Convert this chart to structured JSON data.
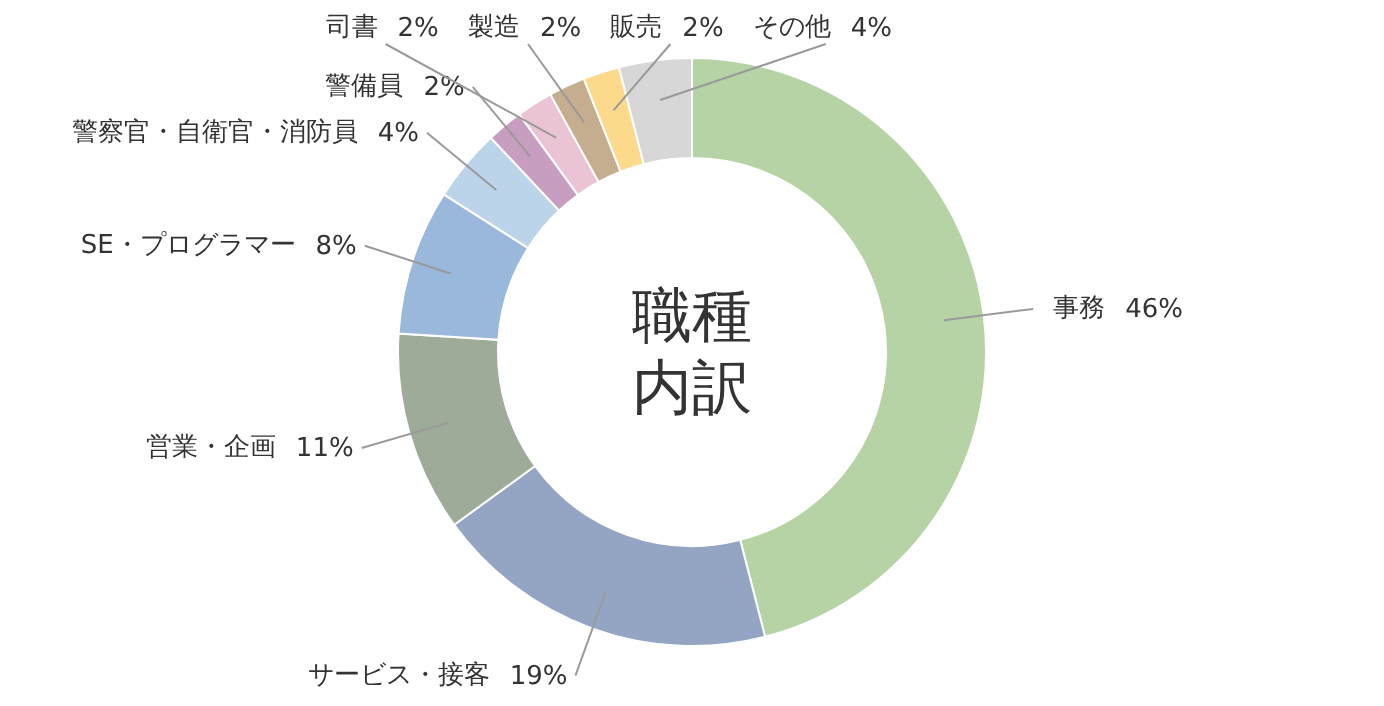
{
  "chart_data": {
    "type": "donut",
    "title": "職種内訳",
    "categories": [
      "事務",
      "サービス・接客",
      "営業・企画",
      "SE・プログラマー",
      "警察官・自衛官・消防員",
      "警備員",
      "司書",
      "製造",
      "販売",
      "その他"
    ],
    "values": [
      46,
      19,
      11,
      8,
      4,
      2,
      2,
      2,
      2,
      4
    ],
    "value_labels": [
      "46%",
      "19%",
      "11%",
      "8%",
      "4%",
      "2%",
      "2%",
      "2%",
      "2%",
      "4%"
    ],
    "colors": [
      "#b5d3a5",
      "#93a5c3",
      "#9dab98",
      "#9ab7dc",
      "#bcd4ea",
      "#c79dc0",
      "#eac3d5",
      "#c5ad8f",
      "#fcd98b",
      "#d7d7d7"
    ]
  }
}
